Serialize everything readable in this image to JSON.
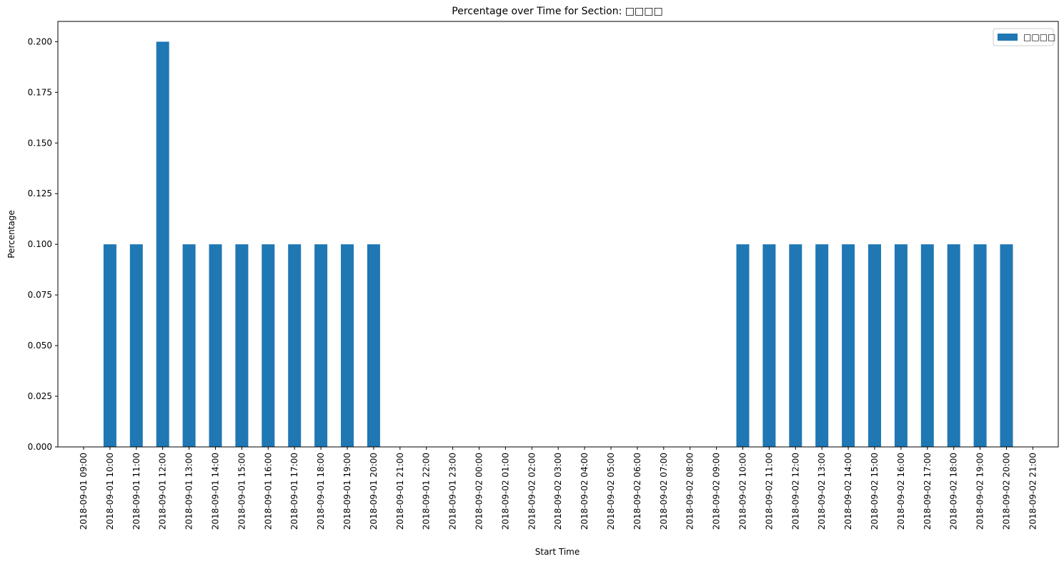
{
  "chart_data": {
    "type": "bar",
    "title": "Percentage over Time for Section: □□□□",
    "xlabel": "Start Time",
    "ylabel": "Percentage",
    "ylim": [
      0,
      0.21
    ],
    "yticks": [
      "0.000",
      "0.025",
      "0.050",
      "0.075",
      "0.100",
      "0.125",
      "0.150",
      "0.175",
      "0.200"
    ],
    "grid": false,
    "legend_placement": "top-right",
    "categories": [
      "2018-09-01 09:00",
      "2018-09-01 10:00",
      "2018-09-01 11:00",
      "2018-09-01 12:00",
      "2018-09-01 13:00",
      "2018-09-01 14:00",
      "2018-09-01 15:00",
      "2018-09-01 16:00",
      "2018-09-01 17:00",
      "2018-09-01 18:00",
      "2018-09-01 19:00",
      "2018-09-01 20:00",
      "2018-09-01 21:00",
      "2018-09-01 22:00",
      "2018-09-01 23:00",
      "2018-09-02 00:00",
      "2018-09-02 01:00",
      "2018-09-02 02:00",
      "2018-09-02 03:00",
      "2018-09-02 04:00",
      "2018-09-02 05:00",
      "2018-09-02 06:00",
      "2018-09-02 07:00",
      "2018-09-02 08:00",
      "2018-09-02 09:00",
      "2018-09-02 10:00",
      "2018-09-02 11:00",
      "2018-09-02 12:00",
      "2018-09-02 13:00",
      "2018-09-02 14:00",
      "2018-09-02 15:00",
      "2018-09-02 16:00",
      "2018-09-02 17:00",
      "2018-09-02 18:00",
      "2018-09-02 19:00",
      "2018-09-02 20:00",
      "2018-09-02 21:00"
    ],
    "series": [
      {
        "name": "□□□□",
        "color": "#1f77b4",
        "values": [
          0,
          0.1,
          0.1,
          0.2,
          0.1,
          0.1,
          0.1,
          0.1,
          0.1,
          0.1,
          0.1,
          0.1,
          0,
          0,
          0,
          0,
          0,
          0,
          0,
          0,
          0,
          0,
          0,
          0,
          0,
          0.1,
          0.1,
          0.1,
          0.1,
          0.1,
          0.1,
          0.1,
          0.1,
          0.1,
          0.1,
          0.1,
          0
        ]
      }
    ]
  }
}
